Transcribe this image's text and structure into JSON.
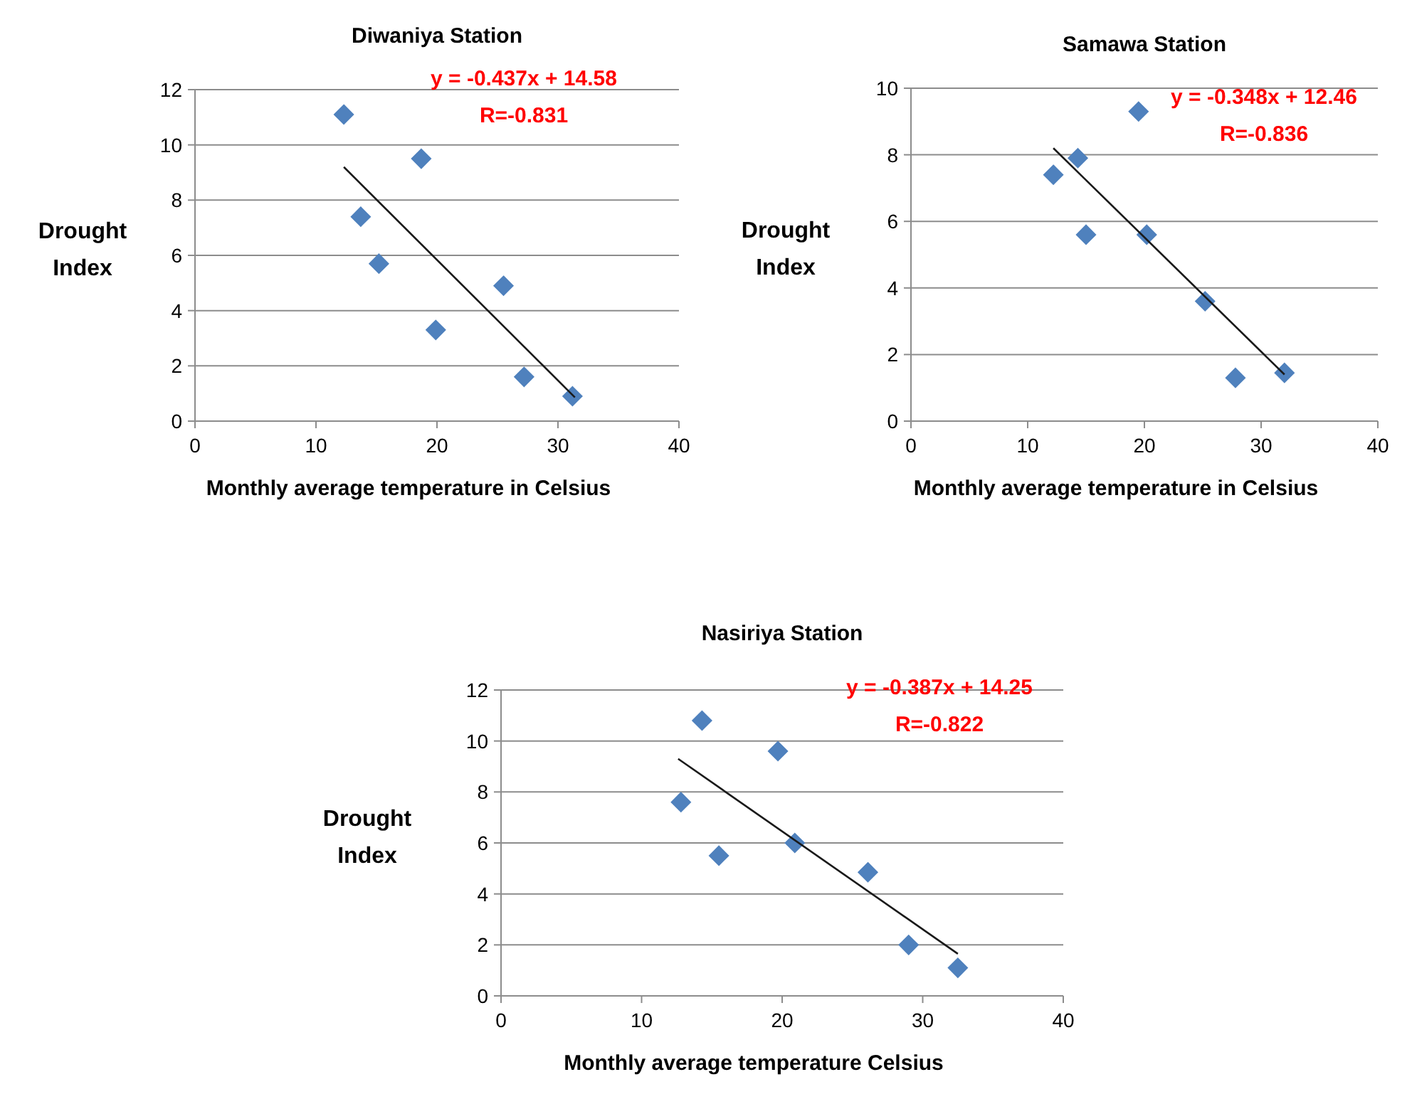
{
  "chart_data": [
    {
      "type": "scatter",
      "title": "Diwaniya Station",
      "xlabel": "Monthly average temperature in Celsius",
      "ylabel": "Drought Index",
      "xlim": [
        0,
        40
      ],
      "xticks": [
        0,
        10,
        20,
        30,
        40
      ],
      "ylim": [
        0,
        12
      ],
      "yticks": [
        0,
        2,
        4,
        6,
        8,
        10,
        12
      ],
      "grid": "y",
      "annotations": [
        "y = -0.437x + 14.58",
        "R=-0.831"
      ],
      "series": [
        {
          "color": "#4f81bd",
          "marker": "diamond",
          "x": [
            12.3,
            18.7,
            13.7,
            15.2,
            25.5,
            19.9,
            27.2,
            31.2
          ],
          "values": [
            11.1,
            9.5,
            7.4,
            5.7,
            4.9,
            3.3,
            1.6,
            0.9
          ]
        },
        {
          "type": "line",
          "color": "#1a1a1a",
          "x": [
            12.3,
            31.4
          ],
          "values": [
            9.2,
            0.86
          ]
        }
      ]
    },
    {
      "type": "scatter",
      "title": "Samawa Station",
      "xlabel": "Monthly average temperature in Celsius",
      "ylabel": "Drought Index",
      "xlim": [
        0,
        40
      ],
      "xticks": [
        0,
        10,
        20,
        30,
        40
      ],
      "ylim": [
        0,
        10
      ],
      "yticks": [
        0,
        2,
        4,
        6,
        8,
        10
      ],
      "grid": "y",
      "annotations": [
        "y = -0.348x + 12.46",
        "R=-0.836"
      ],
      "series": [
        {
          "color": "#4f81bd",
          "marker": "diamond",
          "x": [
            12.2,
            14.3,
            19.5,
            15.0,
            20.2,
            25.2,
            27.8,
            32.0
          ],
          "values": [
            7.4,
            7.9,
            9.3,
            5.6,
            5.6,
            3.6,
            1.3,
            1.45
          ]
        },
        {
          "type": "line",
          "color": "#1a1a1a",
          "x": [
            12.2,
            32.0
          ],
          "values": [
            8.2,
            1.4
          ]
        }
      ]
    },
    {
      "type": "scatter",
      "title": "Nasiriya Station",
      "xlabel": "Monthly average temperature Celsius",
      "ylabel": "Drought Index",
      "xlim": [
        0,
        40
      ],
      "xticks": [
        0,
        10,
        20,
        30,
        40
      ],
      "ylim": [
        0,
        12
      ],
      "yticks": [
        0,
        2,
        4,
        6,
        8,
        10,
        12
      ],
      "grid": "y",
      "annotations": [
        "y = -0.387x + 14.25",
        "R=-0.822"
      ],
      "series": [
        {
          "color": "#4f81bd",
          "marker": "diamond",
          "x": [
            14.3,
            19.7,
            12.8,
            15.5,
            20.9,
            26.1,
            29.0,
            32.5
          ],
          "values": [
            10.8,
            9.6,
            7.6,
            5.5,
            6.0,
            4.85,
            2.0,
            1.1
          ]
        },
        {
          "type": "line",
          "color": "#1a1a1a",
          "x": [
            12.6,
            32.5
          ],
          "values": [
            9.3,
            1.65
          ]
        }
      ]
    }
  ]
}
